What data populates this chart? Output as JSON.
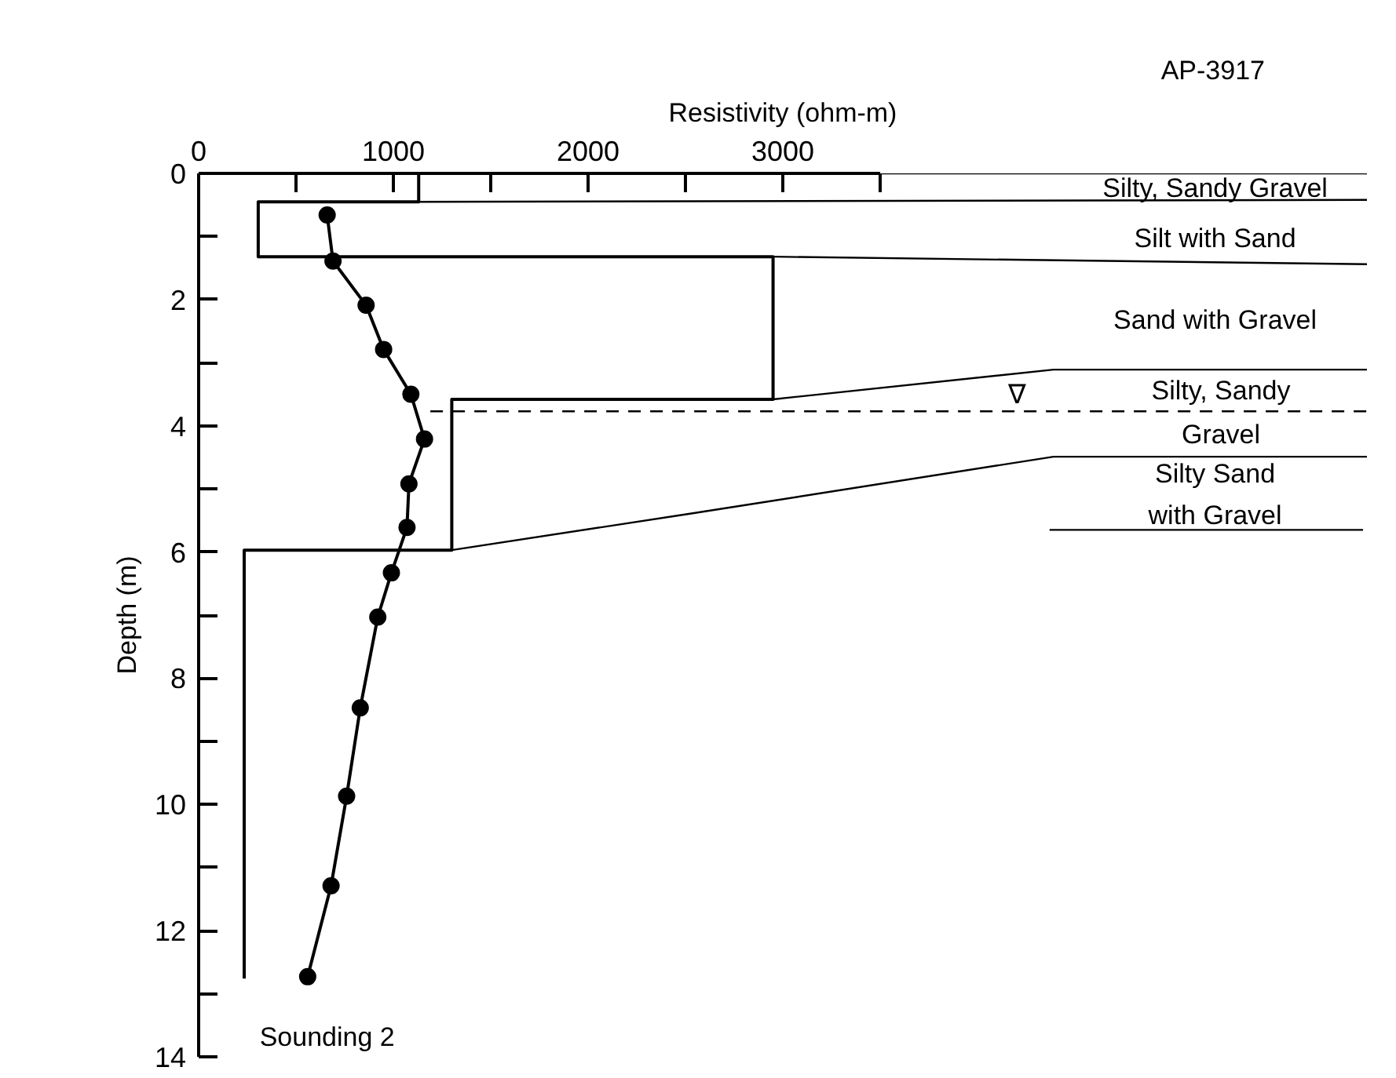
{
  "chart_data": {
    "type": "line",
    "xlabel": "Resistivity (ohm-m)",
    "ylabel": "Depth (m)",
    "xlim": [
      0,
      6000
    ],
    "ylim": [
      14,
      0
    ],
    "xticks": [
      0,
      {
        "value": 500,
        "label": null
      },
      1000,
      {
        "value": 1500,
        "label": null
      },
      2000,
      {
        "value": 2500,
        "label": null
      },
      3000,
      {
        "value": 3500,
        "label": null
      }
    ],
    "yticks": [
      0,
      {
        "value": 1,
        "label": null
      },
      2,
      {
        "value": 3,
        "label": null
      },
      4,
      {
        "value": 5,
        "label": null
      },
      6,
      {
        "value": 7,
        "label": null
      },
      8,
      {
        "value": 9,
        "label": null
      },
      10,
      {
        "value": 11,
        "label": null
      },
      12,
      {
        "value": 13,
        "label": null
      },
      14
    ],
    "grid": false,
    "series": [
      {
        "color": "#000000",
        "marker": "none",
        "line_style": "solid",
        "x": [
          1130,
          1130,
          306,
          306,
          2950,
          2950,
          1300,
          1300,
          234,
          234
        ],
        "values": [
          0,
          0.45,
          0.45,
          1.32,
          1.32,
          3.58,
          3.58,
          5.97,
          5.97,
          12.76
        ]
      },
      {
        "color": "#000000",
        "marker": "circle",
        "line_style": "solid",
        "x": [
          660,
          690,
          860,
          950,
          1090,
          1160,
          1080,
          1070,
          990,
          920,
          830,
          760,
          680,
          560
        ],
        "values": [
          0.66,
          1.39,
          2.09,
          2.79,
          3.5,
          4.21,
          4.92,
          5.61,
          6.33,
          7.03,
          8.47,
          9.87,
          11.29,
          12.73
        ]
      },
      {
        "color": "#000000",
        "marker": "none",
        "line_style": "solid",
        "x": [
          3500,
          6000
        ],
        "values": [
          0,
          0
        ]
      },
      {
        "color": "#000000",
        "marker": "none",
        "line_style": "solid",
        "x": [
          1130,
          6000
        ],
        "values": [
          0.45,
          0.42
        ]
      },
      {
        "color": "#000000",
        "marker": "none",
        "line_style": "solid",
        "x": [
          2950,
          6000
        ],
        "values": [
          1.32,
          1.44
        ]
      },
      {
        "color": "#000000",
        "marker": "none",
        "line_style": "solid",
        "x": [
          2950,
          4390,
          6000
        ],
        "values": [
          3.58,
          3.11,
          3.11
        ]
      },
      {
        "color": "#000000",
        "marker": "none",
        "line_style": "dashed",
        "x": [
          1190,
          6000
        ],
        "values": [
          3.77,
          3.77
        ]
      },
      {
        "color": "#000000",
        "marker": "none",
        "line_style": "solid",
        "x": [
          1300,
          2530,
          4390,
          6000
        ],
        "values": [
          5.97,
          5.39,
          4.49,
          4.49
        ]
      },
      {
        "color": "#000000",
        "marker": "none",
        "line_style": "solid",
        "x": [
          4370,
          5980
        ],
        "values": [
          5.65,
          5.65
        ]
      }
    ],
    "annotations": [
      "AP-3917",
      "Silty, Sandy Gravel",
      "Silt with Sand",
      "Sand with Gravel",
      "∇",
      "Silty, Sandy",
      "Gravel",
      "Silty Sand",
      "with Gravel",
      "Sounding 2"
    ]
  }
}
